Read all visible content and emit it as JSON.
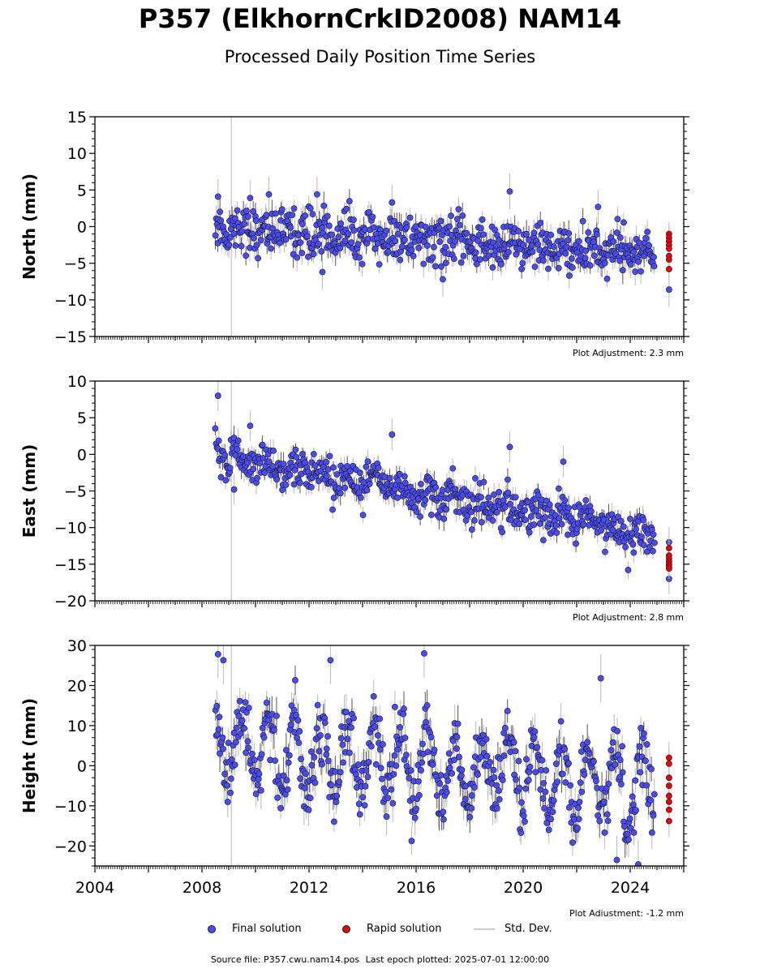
{
  "title": "P357 (ElkhornCrkID2008) NAM14",
  "subtitle": "Processed Daily Position Time Series",
  "legend": {
    "final": "Final solution",
    "rapid": "Rapid solution",
    "stddev": "Std. Dev."
  },
  "source": {
    "file_label": "Source file: P357.cwu.nam14.pos",
    "last_epoch_label": "Last epoch plotted: 2025-07-01 12:00:00"
  },
  "colors": {
    "final": "#4b4bf5",
    "rapid": "#e8000b",
    "stddev": "#bbbbbb",
    "axis": "#000000"
  },
  "chart_data": [
    {
      "type": "scatter",
      "ylabel": "North (mm)",
      "ylim": [
        -15,
        15
      ],
      "yticks": [
        -15,
        -10,
        -5,
        0,
        5,
        10,
        15
      ],
      "xlim": [
        2004,
        2026
      ],
      "adjustment": "Plot Adjustment: 2.3 mm",
      "final_trend": {
        "start_year": 2008.5,
        "end_year": 2024.9,
        "start_value": 0.0,
        "end_value": -4.0
      },
      "final_scatter": 1.6,
      "seasonal_amplitude": 0.5,
      "outliers": [
        {
          "x": 2008.6,
          "y": 4.1
        },
        {
          "x": 2009.8,
          "y": 3.9
        },
        {
          "x": 2010.5,
          "y": 4.4
        },
        {
          "x": 2012.3,
          "y": 4.4
        },
        {
          "x": 2015.1,
          "y": 3.3
        },
        {
          "x": 2019.5,
          "y": 4.8
        },
        {
          "x": 2022.8,
          "y": 2.7
        },
        {
          "x": 2017.0,
          "y": -7.2
        },
        {
          "x": 2012.5,
          "y": -6.2
        }
      ],
      "rapid": {
        "x": 2025.45,
        "values": [
          -1.0,
          -1.5,
          -2.0,
          -2.5,
          -3.0,
          -4.0,
          -4.5,
          -5.8
        ]
      },
      "extra_final": [
        {
          "x": 2025.45,
          "y": -8.6
        }
      ]
    },
    {
      "type": "scatter",
      "ylabel": "East (mm)",
      "ylim": [
        -20,
        10
      ],
      "yticks": [
        -20,
        -15,
        -10,
        -5,
        0,
        5,
        10
      ],
      "xlim": [
        2004,
        2026
      ],
      "adjustment": "Plot Adjustment: 2.8 mm",
      "final_trend": {
        "start_year": 2008.5,
        "end_year": 2024.9,
        "start_value": 0.0,
        "end_value": -11.0
      },
      "final_scatter": 1.4,
      "seasonal_amplitude": 0.8,
      "outliers": [
        {
          "x": 2008.6,
          "y": 8.0
        },
        {
          "x": 2009.8,
          "y": 3.9
        },
        {
          "x": 2015.1,
          "y": 2.7
        },
        {
          "x": 2019.5,
          "y": 1.0
        },
        {
          "x": 2021.5,
          "y": -1.0
        },
        {
          "x": 2009.2,
          "y": -4.8
        }
      ],
      "rapid": {
        "x": 2025.45,
        "values": [
          -12.8,
          -13.8,
          -14.2,
          -14.6,
          -15.0,
          -15.3,
          -15.6
        ]
      },
      "extra_final": [
        {
          "x": 2025.45,
          "y": -12.0
        },
        {
          "x": 2025.45,
          "y": -17.0
        }
      ]
    },
    {
      "type": "scatter",
      "ylabel": "Height (mm)",
      "ylim": [
        -25,
        30
      ],
      "yticks": [
        -20,
        -10,
        0,
        10,
        20,
        30
      ],
      "xlim": [
        2004,
        2026
      ],
      "xticks": [
        2004,
        2008,
        2012,
        2016,
        2020,
        2024
      ],
      "adjustment": "Plot Adjustment: -1.2 mm",
      "final_trend": {
        "start_year": 2008.5,
        "end_year": 2024.9,
        "start_value": 5.0,
        "end_value": -6.0
      },
      "final_scatter": 4.0,
      "seasonal_amplitude": 8.5,
      "outliers": [
        {
          "x": 2008.6,
          "y": 27.8
        },
        {
          "x": 2008.8,
          "y": 26.3
        },
        {
          "x": 2012.8,
          "y": 26.3
        },
        {
          "x": 2016.3,
          "y": 28.0
        },
        {
          "x": 2022.9,
          "y": 21.8
        },
        {
          "x": 2023.5,
          "y": -23.5
        },
        {
          "x": 2024.3,
          "y": -24.6
        }
      ],
      "rapid": {
        "x": 2025.45,
        "values": [
          2.0,
          0.5,
          -3.0,
          -5.0,
          -7.5,
          -9.0,
          -11.0,
          -13.8
        ]
      },
      "extra_final": []
    }
  ]
}
